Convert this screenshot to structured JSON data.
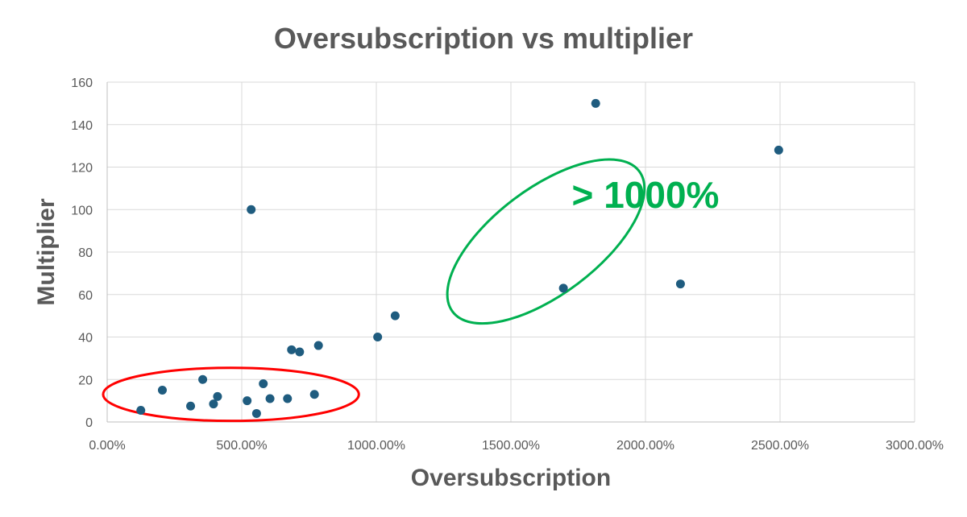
{
  "chart_data": {
    "type": "scatter",
    "title": "Oversubscription vs multiplier",
    "xlabel": "Oversubscription",
    "ylabel": "Multiplier",
    "xlim": [
      0,
      30
    ],
    "ylim": [
      0,
      160
    ],
    "x_ticks": [
      0,
      5,
      10,
      15,
      20,
      25,
      30
    ],
    "x_tick_labels": [
      "0.00%",
      "500.00%",
      "1000.00%",
      "1500.00%",
      "2000.00%",
      "2500.00%",
      "3000.00%"
    ],
    "y_ticks": [
      0,
      20,
      40,
      60,
      80,
      100,
      120,
      140,
      160
    ],
    "y_tick_labels": [
      "0",
      "20",
      "40",
      "60",
      "80",
      "100",
      "120",
      "140",
      "160"
    ],
    "grid": true,
    "legend": "none",
    "marker_color": "#1f5c7f",
    "series": [
      {
        "points": [
          {
            "x": 1.25,
            "y": 5.5
          },
          {
            "x": 2.05,
            "y": 15
          },
          {
            "x": 3.1,
            "y": 7.5
          },
          {
            "x": 3.55,
            "y": 20
          },
          {
            "x": 3.95,
            "y": 8.5
          },
          {
            "x": 4.1,
            "y": 12
          },
          {
            "x": 5.2,
            "y": 10
          },
          {
            "x": 5.35,
            "y": 100
          },
          {
            "x": 5.55,
            "y": 4
          },
          {
            "x": 5.8,
            "y": 18
          },
          {
            "x": 6.05,
            "y": 11
          },
          {
            "x": 6.7,
            "y": 11
          },
          {
            "x": 6.85,
            "y": 34
          },
          {
            "x": 7.15,
            "y": 33
          },
          {
            "x": 7.7,
            "y": 13
          },
          {
            "x": 7.85,
            "y": 36
          },
          {
            "x": 10.05,
            "y": 40
          },
          {
            "x": 10.7,
            "y": 50
          },
          {
            "x": 16.95,
            "y": 63
          },
          {
            "x": 18.15,
            "y": 150
          },
          {
            "x": 21.3,
            "y": 65
          },
          {
            "x": 24.95,
            "y": 128
          }
        ]
      }
    ],
    "annotations": [
      {
        "text": "> 1000%",
        "color": "#00b050",
        "x": 20,
        "y": 107
      },
      {
        "shape": "ellipse",
        "color": "#ff0000",
        "cx": 4.6,
        "cy": 13,
        "rx": 4.75,
        "ry": 12.5,
        "rotate": 0
      },
      {
        "shape": "ellipse",
        "color": "#00b050",
        "cx": 16.3,
        "cy": 85,
        "rx": 18.5,
        "ry": 135,
        "rotate": -37
      }
    ]
  }
}
